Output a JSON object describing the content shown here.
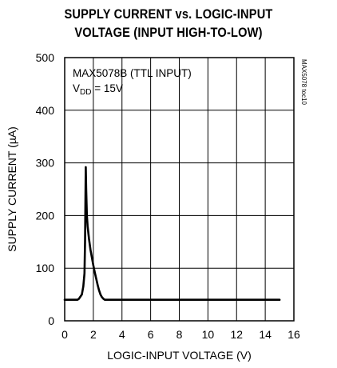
{
  "chart_data": {
    "type": "line",
    "title_lines": [
      "SUPPLY CURRENT vs. LOGIC-INPUT",
      "VOLTAGE (INPUT HIGH-TO-LOW)"
    ],
    "xlabel": "LOGIC-INPUT VOLTAGE (V)",
    "ylabel": "SUPPLY CURRENT (µA)",
    "xlim": [
      0,
      16
    ],
    "ylim": [
      0,
      500
    ],
    "xticks": [
      0,
      2,
      4,
      6,
      8,
      10,
      12,
      14,
      16
    ],
    "yticks": [
      0,
      100,
      200,
      300,
      400,
      500
    ],
    "grid": true,
    "annotation": {
      "line1": "MAX5078B (TTL INPUT)",
      "line2_prefix": "V",
      "line2_sub": "DD",
      "line2_suffix": " = 15V"
    },
    "figure_code": "MAX5078 toc10",
    "series": [
      {
        "x": [
          0.0,
          0.9,
          1.0,
          1.2,
          1.3,
          1.38,
          1.42,
          1.45,
          1.47,
          1.5,
          1.55,
          1.6,
          1.7,
          1.8,
          1.9,
          2.0,
          2.1,
          2.2,
          2.3,
          2.4,
          2.5,
          2.6,
          2.7,
          2.8,
          3.0,
          15.0
        ],
        "y": [
          40,
          40,
          42,
          50,
          65,
          90,
          150,
          230,
          292,
          250,
          200,
          180,
          155,
          135,
          120,
          105,
          92,
          80,
          68,
          58,
          50,
          45,
          42,
          40,
          40,
          40
        ]
      }
    ]
  }
}
